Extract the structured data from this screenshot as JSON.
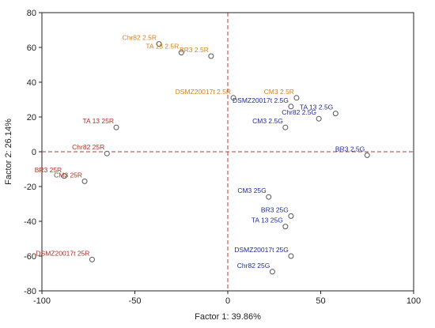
{
  "chart_data": {
    "type": "scatter",
    "xlabel": "Factor 1: 39.86%",
    "ylabel": "Factor 2: 26.14%",
    "xlim": [
      -100,
      100
    ],
    "ylim": [
      -80,
      80
    ],
    "xticks": [
      -100,
      -50,
      0,
      50,
      100
    ],
    "yticks": [
      -80,
      -60,
      -40,
      -20,
      0,
      20,
      40,
      60,
      80
    ],
    "grid": false,
    "reference_lines": {
      "x": 0,
      "y": 0,
      "color": "#c0392b",
      "style": "dashed"
    },
    "colors": {
      "R": "#c0392b",
      "G": "#1f2a9e",
      "marker": "#555555"
    },
    "points": [
      {
        "label": "Chr82 2.5R",
        "x": -37,
        "y": 62,
        "group": "R",
        "label_color": "#d4811f"
      },
      {
        "label": "TA 13 2.5R",
        "x": -25,
        "y": 57,
        "group": "R",
        "label_color": "#d4811f"
      },
      {
        "label": "BR3 2.5R",
        "x": -9,
        "y": 55,
        "group": "R",
        "label_color": "#d4811f"
      },
      {
        "label": "DSMZ20017t 2.5R",
        "x": 3,
        "y": 31,
        "group": "R",
        "label_color": "#d4811f"
      },
      {
        "label": "CM3 2.5R",
        "x": 37,
        "y": 31,
        "group": "R",
        "label_color": "#d4811f"
      },
      {
        "label": "TA 13 25R",
        "x": -60,
        "y": 14,
        "group": "R",
        "label_color": "#a93226"
      },
      {
        "label": "Chr82 25R",
        "x": -65,
        "y": -1,
        "group": "R",
        "label_color": "#a93226"
      },
      {
        "label": "BR3 25R",
        "x": -88,
        "y": -14,
        "group": "R",
        "label_color": "#a93226"
      },
      {
        "label": "CM3 25R",
        "x": -77,
        "y": -17,
        "group": "R",
        "label_color": "#a93226"
      },
      {
        "label": "DSMZ20017t 25R",
        "x": -73,
        "y": -62,
        "group": "R",
        "label_color": "#a93226"
      },
      {
        "label": "DSMZ20017t 2.5G",
        "x": 34,
        "y": 26,
        "group": "G",
        "label_color": "#1f2a9e"
      },
      {
        "label": "TA 13 2.5G",
        "x": 58,
        "y": 22,
        "group": "G",
        "label_color": "#1f2a9e"
      },
      {
        "label": "Chr82 2.5G",
        "x": 49,
        "y": 19,
        "group": "G",
        "label_color": "#1f2a9e"
      },
      {
        "label": "CM3 2.5G",
        "x": 31,
        "y": 14,
        "group": "G",
        "label_color": "#1f2a9e"
      },
      {
        "label": "BR3 2.5G",
        "x": 75,
        "y": -2,
        "group": "G",
        "label_color": "#1f2a9e"
      },
      {
        "label": "CM3 25G",
        "x": 22,
        "y": -26,
        "group": "G",
        "label_color": "#1f2a9e"
      },
      {
        "label": "BR3 25G",
        "x": 34,
        "y": -37,
        "group": "G",
        "label_color": "#1f2a9e"
      },
      {
        "label": "TA 13 25G",
        "x": 31,
        "y": -43,
        "group": "G",
        "label_color": "#1f2a9e"
      },
      {
        "label": "DSMZ20017t 25G",
        "x": 34,
        "y": -60,
        "group": "G",
        "label_color": "#1f2a9e"
      },
      {
        "label": "Chr82 25G",
        "x": 24,
        "y": -69,
        "group": "G",
        "label_color": "#1f2a9e"
      }
    ]
  }
}
